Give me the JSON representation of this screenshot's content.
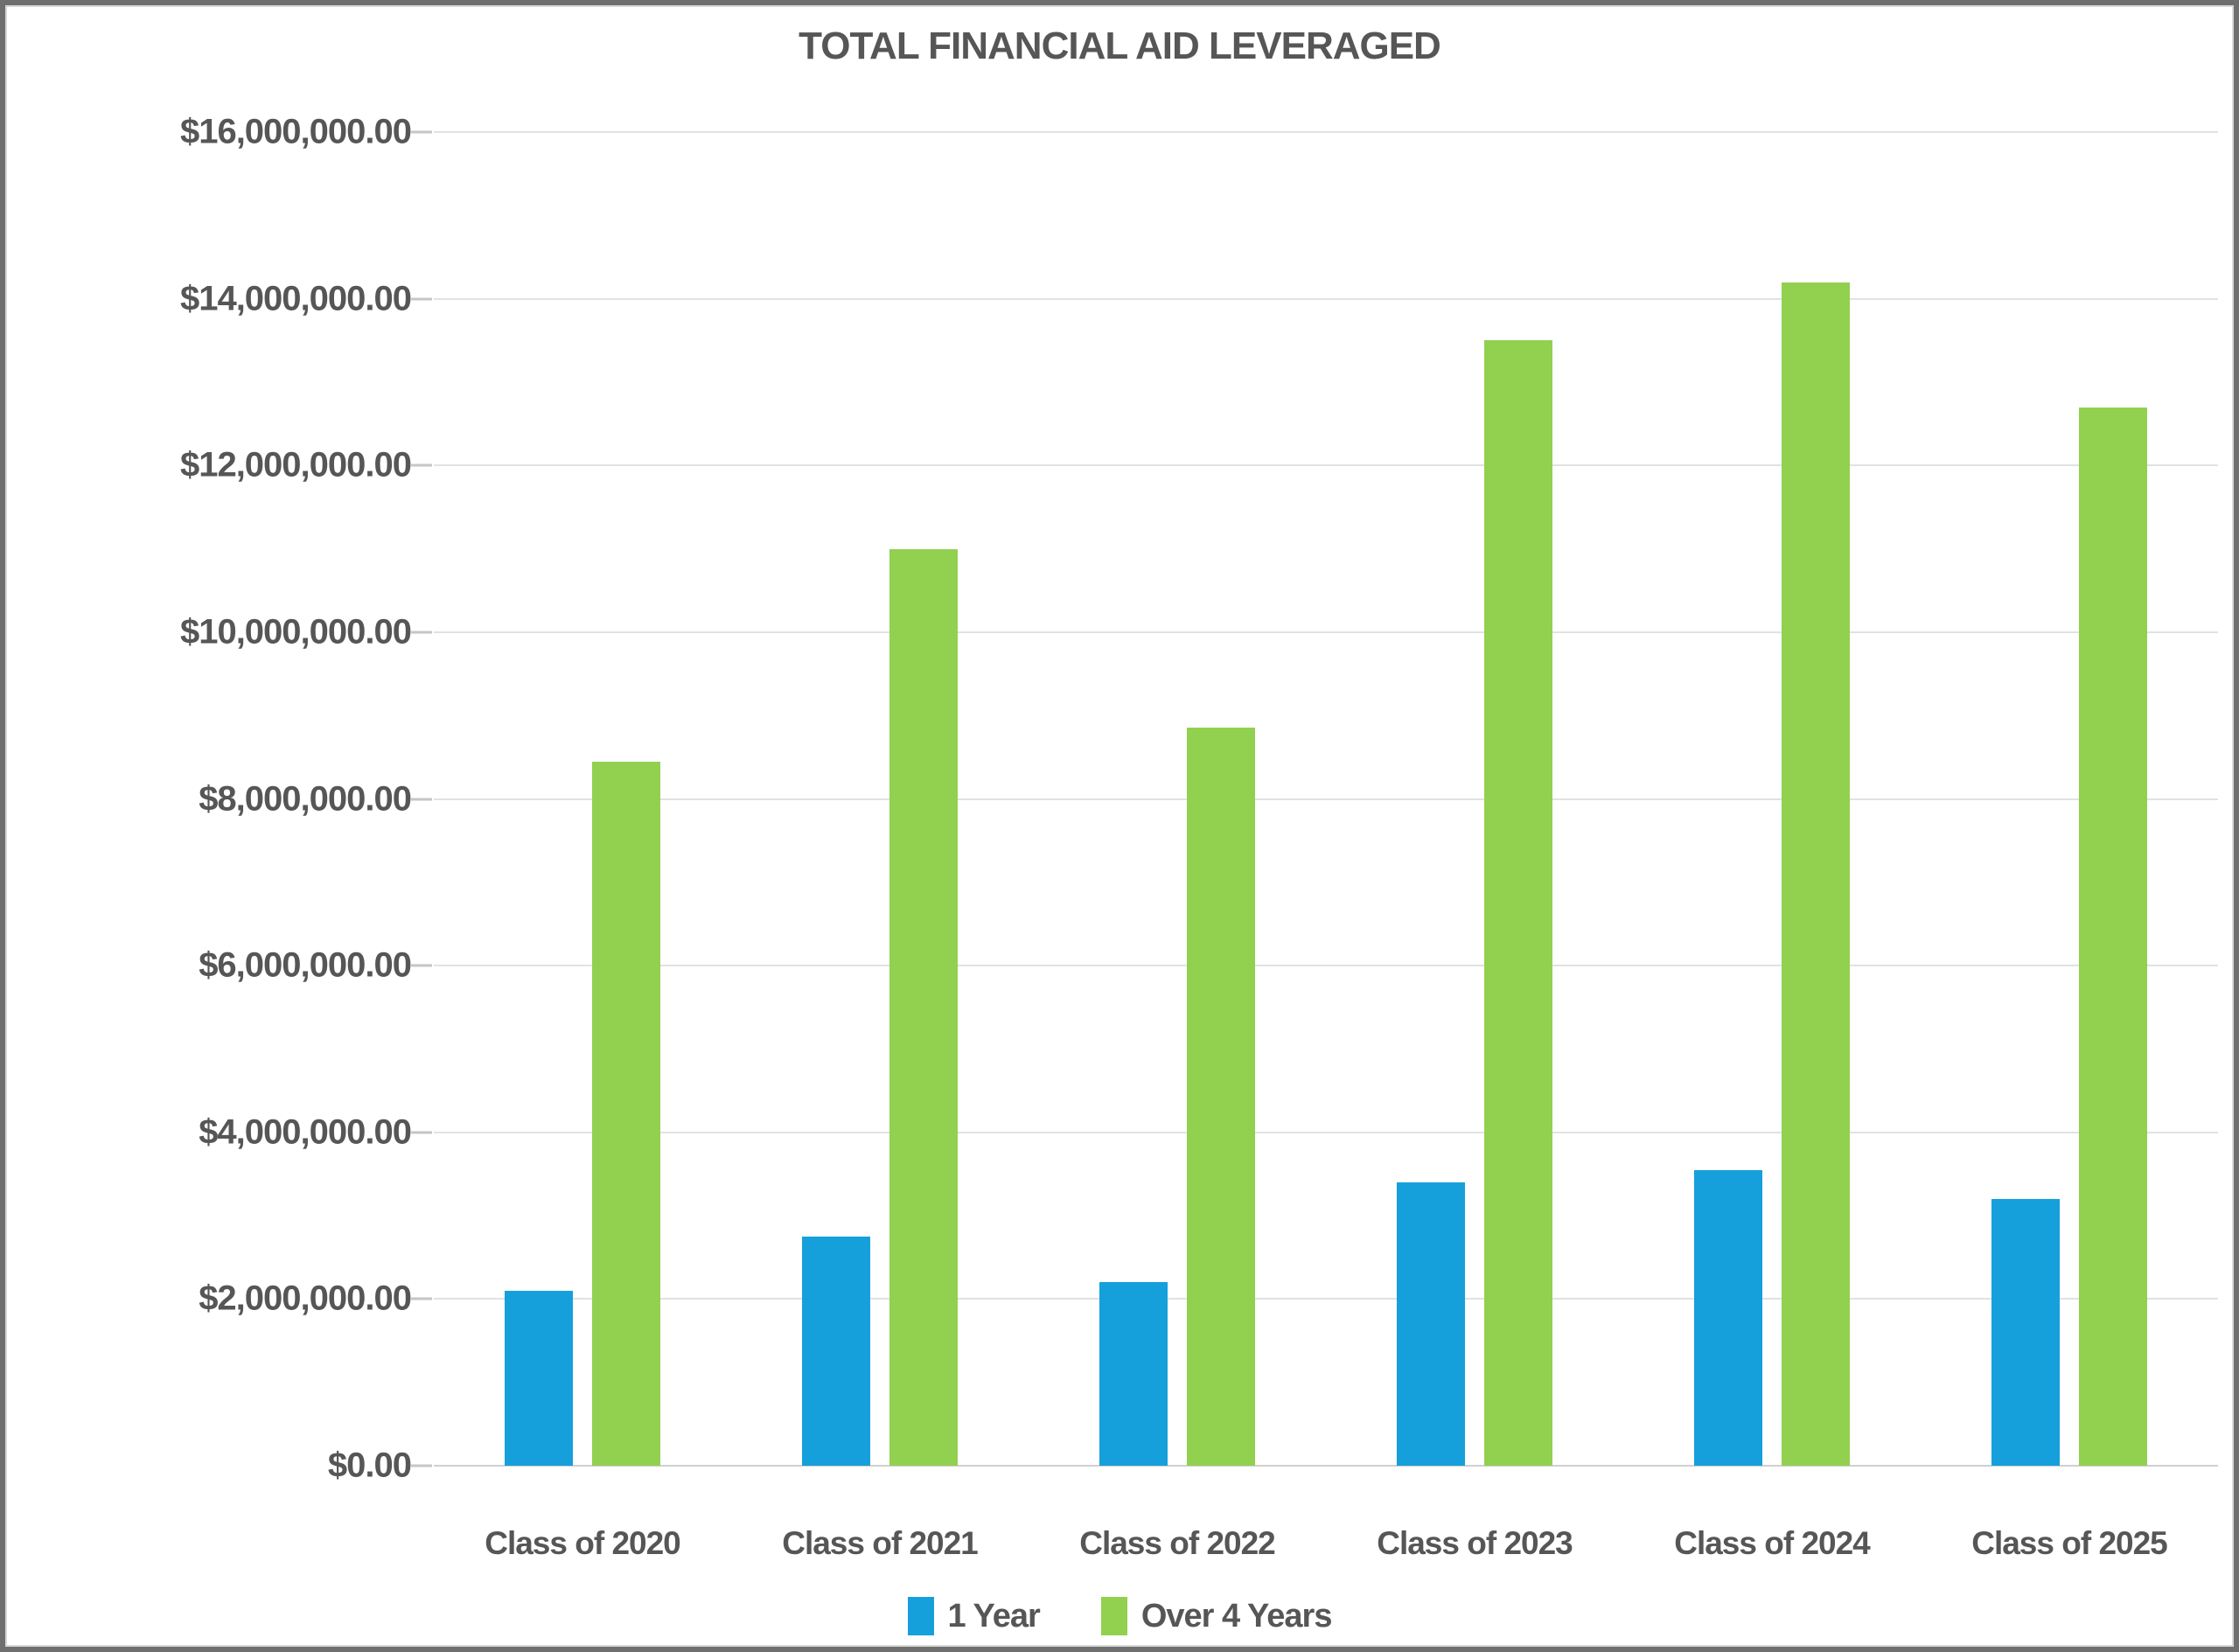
{
  "chart_data": {
    "type": "bar",
    "title": "TOTAL FINANCIAL AID LEVERAGED",
    "categories": [
      "Class of 2020",
      "Class of 2021",
      "Class of 2022",
      "Class of 2023",
      "Class of 2024",
      "Class of 2025"
    ],
    "series": [
      {
        "name": "1 Year",
        "color": "#16A0DB",
        "values": [
          2100000,
          2750000,
          2200000,
          3400000,
          3550000,
          3200000
        ]
      },
      {
        "name": "Over 4 Years",
        "color": "#92D050",
        "values": [
          8450000,
          11000000,
          8850000,
          13500000,
          14200000,
          12700000
        ]
      }
    ],
    "ylim": [
      0,
      16000000
    ],
    "ytick_step": 2000000,
    "ytick_labels": [
      "$0.00",
      "$2,000,000.00",
      "$4,000,000.00",
      "$6,000,000.00",
      "$8,000,000.00",
      "$10,000,000.00",
      "$12,000,000.00",
      "$14,000,000.00",
      "$16,000,000.00"
    ],
    "grid": true,
    "legend_position": "bottom",
    "text_color": "#565656",
    "gridline_color": "#E2E2E2"
  }
}
